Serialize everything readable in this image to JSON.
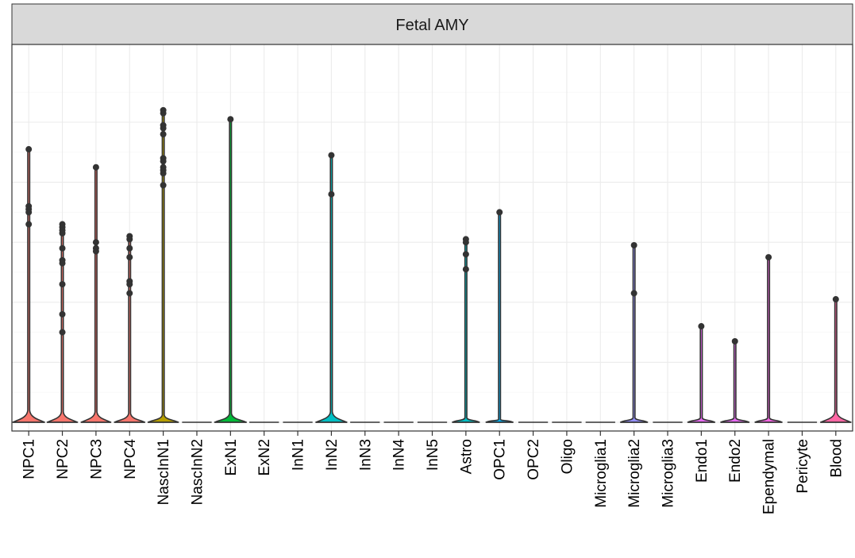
{
  "chart_data": {
    "type": "violin",
    "title": "",
    "xlabel": "",
    "ylabel": "",
    "facet_label": "Fetal AMY",
    "y_axis_labels_shown": false,
    "grid": true,
    "legend": "none",
    "ylim": [
      0,
      100
    ],
    "categories": [
      "NPC1",
      "NPC2",
      "NPC3",
      "NPC4",
      "NascInN1",
      "NascInN2",
      "ExN1",
      "ExN2",
      "InN1",
      "InN2",
      "InN3",
      "InN4",
      "InN5",
      "Astro",
      "OPC1",
      "OPC2",
      "Oligo",
      "Microglia1",
      "Microglia2",
      "Microglia3",
      "Endo1",
      "Endo2",
      "Ependymal",
      "Pericyte",
      "Blood"
    ],
    "colors": [
      "#F8766D",
      "#F8766D",
      "#F8766D",
      "#F8766D",
      "#B79F00",
      "#B79F00",
      "#00BA38",
      "#00BA38",
      "#00BF7D",
      "#00BFC4",
      "#00BFC4",
      "#00BFC4",
      "#00BFC4",
      "#00BFC4",
      "#00B0F6",
      "#00B0F6",
      "#619CFF",
      "#9590FF",
      "#9590FF",
      "#B983FF",
      "#E76BF3",
      "#E76BF3",
      "#F564E3",
      "#FD61D1",
      "#FF67A4"
    ],
    "violin_max": [
      91,
      66,
      85,
      62,
      104,
      0,
      101,
      0,
      0,
      89,
      0,
      0,
      0,
      61,
      70,
      0,
      0,
      0,
      59,
      0,
      32,
      27,
      55,
      0,
      41
    ],
    "violin_body_height": [
      4,
      3.5,
      3.5,
      3,
      2.5,
      0,
      3,
      0,
      0,
      3.5,
      0,
      0,
      0,
      1.5,
      1,
      0,
      0,
      0,
      1.5,
      0,
      1.5,
      1.5,
      1.5,
      0,
      3.5
    ],
    "violin_body_halfwidth": [
      0.47,
      0.45,
      0.44,
      0.45,
      0.45,
      0,
      0.47,
      0,
      0,
      0.46,
      0,
      0,
      0,
      0.4,
      0.4,
      0,
      0,
      0,
      0.4,
      0,
      0.4,
      0.42,
      0.4,
      0,
      0.45
    ],
    "outliers": [
      [
        91,
        72,
        71,
        70,
        66
      ],
      [
        66,
        65,
        64,
        63,
        58,
        54,
        53,
        46,
        36,
        30
      ],
      [
        85,
        60,
        58,
        57
      ],
      [
        62,
        61,
        58,
        55,
        47,
        46,
        43
      ],
      [
        104,
        103,
        99,
        98,
        96,
        88,
        87,
        85,
        84,
        83,
        79
      ],
      [],
      [
        101
      ],
      [],
      [],
      [
        89,
        76
      ],
      [],
      [],
      [],
      [
        61,
        60,
        56,
        51
      ],
      [
        70
      ],
      [],
      [],
      [],
      [
        59,
        43
      ],
      [],
      [
        32
      ],
      [
        27
      ],
      [
        55
      ],
      [],
      [
        41
      ]
    ]
  }
}
